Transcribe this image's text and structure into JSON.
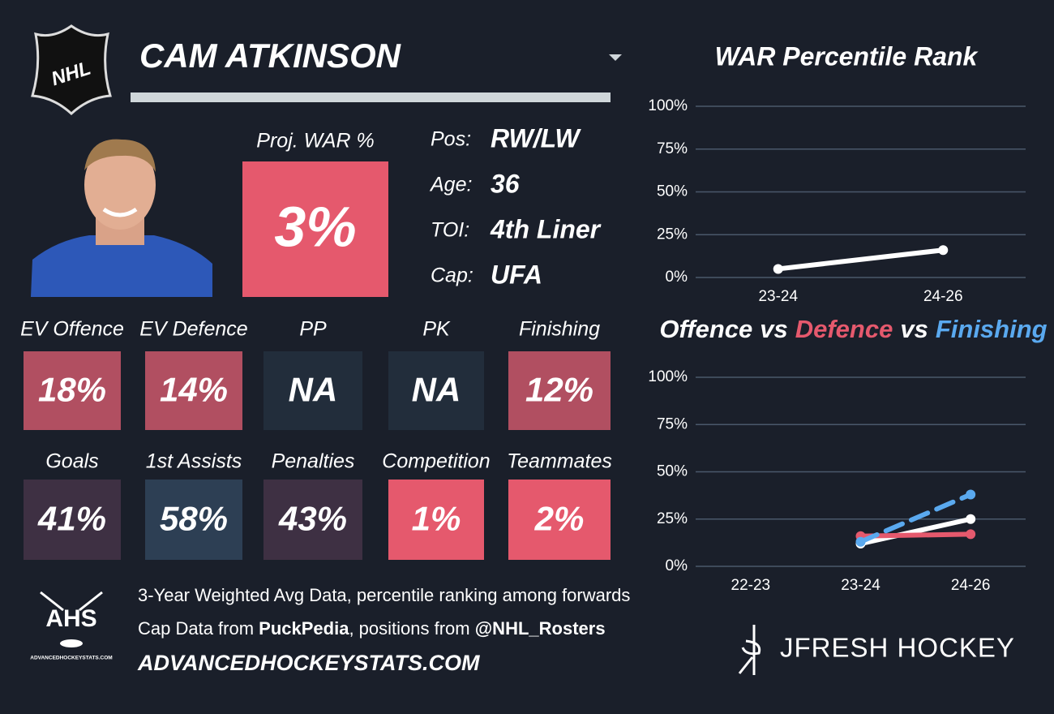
{
  "header": {
    "logo": "NHL",
    "player_name": "CAM ATKINSON"
  },
  "projection": {
    "label": "Proj. WAR %",
    "value": "3%",
    "color": "#e5596d"
  },
  "profile": {
    "rows": [
      {
        "label": "Pos:",
        "value": "RW/LW"
      },
      {
        "label": "Age:",
        "value": "36"
      },
      {
        "label": "TOI:",
        "value": "4th Liner"
      },
      {
        "label": "Cap:",
        "value": "UFA"
      }
    ]
  },
  "stats": {
    "tiles": [
      {
        "label": "EV Offence",
        "value": "18%",
        "color": "#b14f61"
      },
      {
        "label": "EV Defence",
        "value": "14%",
        "color": "#b14f61"
      },
      {
        "label": "PP",
        "value": "NA",
        "color": "#222d3b"
      },
      {
        "label": "PK",
        "value": "NA",
        "color": "#222d3b"
      },
      {
        "label": "Finishing",
        "value": "12%",
        "color": "#b14f61"
      },
      {
        "label": "Goals",
        "value": "41%",
        "color": "#3e3043"
      },
      {
        "label": "1st Assists",
        "value": "58%",
        "color": "#2d3f54"
      },
      {
        "label": "Penalties",
        "value": "43%",
        "color": "#3e3043"
      },
      {
        "label": "Competition",
        "value": "1%",
        "color": "#e5596d"
      },
      {
        "label": "Teammates",
        "value": "2%",
        "color": "#e5596d"
      }
    ]
  },
  "footer": {
    "logo": "AHS",
    "logo_caption": "ADVANCEDHOCKEYSTATS.COM",
    "note": "3-Year Weighted Avg Data, percentile ranking among forwards",
    "credit": [
      "Cap Data from ",
      "PuckPedia",
      ", positions from ",
      "@NHL_Rosters"
    ],
    "site": "ADVANCEDHOCKEYSTATS.COM",
    "brand": "JFRESH HOCKEY"
  },
  "chart_data": [
    {
      "type": "line",
      "title": "WAR Percentile Rank",
      "categories": [
        "23-24",
        "24-26"
      ],
      "values": [
        5,
        16
      ],
      "color": "#ffffff",
      "ylim": [
        0,
        100
      ],
      "yticks": [
        {
          "value": 0,
          "label": "0%"
        },
        {
          "value": 25,
          "label": "25%"
        },
        {
          "value": 50,
          "label": "50%"
        },
        {
          "value": 75,
          "label": "75%"
        },
        {
          "value": 100,
          "label": "100%"
        }
      ],
      "grid": true
    },
    {
      "type": "line",
      "legend_separator": "vs",
      "categories": [
        "22-23",
        "23-24",
        "24-26"
      ],
      "series": [
        {
          "name": "Offence",
          "color": "#ffffff",
          "values": [
            null,
            12,
            25
          ]
        },
        {
          "name": "Defence",
          "color": "#e5596d",
          "values": [
            null,
            16,
            17
          ]
        },
        {
          "name": "Finishing",
          "color": "#5aa9ef",
          "line_style": "dashed",
          "values": [
            null,
            13,
            38
          ]
        }
      ],
      "ylim": [
        0,
        100
      ],
      "yticks": [
        {
          "value": 0,
          "label": "0%"
        },
        {
          "value": 25,
          "label": "25%"
        },
        {
          "value": 50,
          "label": "50%"
        },
        {
          "value": 75,
          "label": "75%"
        },
        {
          "value": 100,
          "label": "100%"
        }
      ],
      "grid": true
    }
  ]
}
